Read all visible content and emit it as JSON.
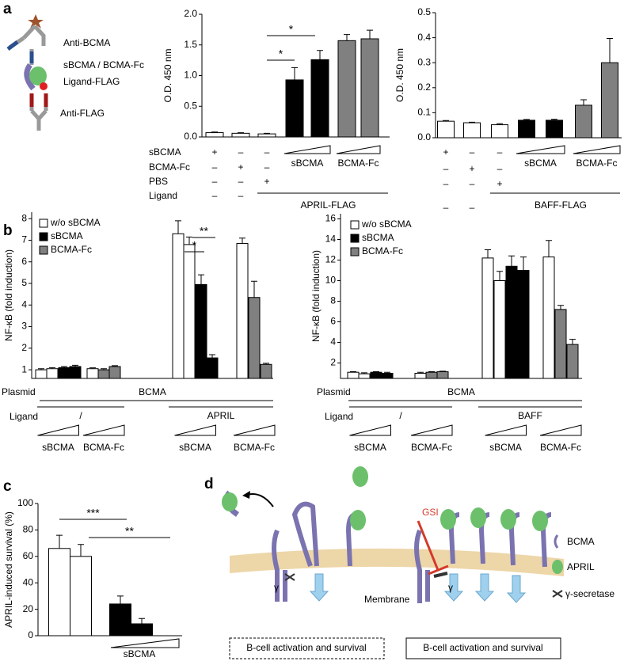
{
  "panel_labels": [
    "a",
    "b",
    "c",
    "d"
  ],
  "schematic": {
    "labels": [
      "Anti-BCMA",
      "sBCMA / BCMA-Fc",
      "Ligand-FLAG",
      "Anti-FLAG"
    ]
  },
  "diagram": {
    "inhibitor": "GSI",
    "legend": [
      "BCMA",
      "APRIL",
      "γ-secretase"
    ],
    "membrane": "Membrane",
    "gamma": [
      "γ",
      "γ"
    ],
    "outcomes": [
      "B-cell activation and survival",
      "B-cell activation and survival"
    ]
  },
  "chart_data": [
    {
      "type": "bar",
      "y_label": "O.D. 450 nm",
      "ylim": [
        0,
        2
      ],
      "yticks": [
        {
          "value": 0,
          "label": "0.0"
        },
        0.5,
        {
          "value": 1,
          "label": "1.0"
        },
        1.5,
        {
          "value": 2,
          "label": "2.0"
        }
      ],
      "values": [
        0.07,
        0.06,
        0.05,
        0.93,
        1.26,
        1.57,
        1.6
      ],
      "errors": [
        0.01,
        0.01,
        0.01,
        0.2,
        0.15,
        0.1,
        0.14
      ],
      "colors": [
        "#ffffff",
        "#ffffff",
        "#ffffff",
        "#000000",
        "#000000",
        "#808080",
        "#808080"
      ],
      "annotations": [
        "*",
        "*"
      ],
      "conditions": [
        {
          "name": "sBCMA",
          "marks": [
            "+",
            "–",
            "–"
          ]
        },
        {
          "name": "BCMA-Fc",
          "marks": [
            "–",
            "+",
            "–"
          ]
        },
        {
          "name": "PBS",
          "marks": [
            "–",
            "–",
            "+"
          ]
        },
        {
          "name": "Ligand",
          "marks": [
            "–",
            "–"
          ]
        }
      ],
      "groups": [
        "sBCMA",
        "BCMA-Fc"
      ],
      "ligand": "APRIL-FLAG"
    },
    {
      "type": "bar",
      "y_label": "O.D. 450 nm",
      "ylim": [
        0,
        0.5
      ],
      "yticks": [
        {
          "value": 0,
          "label": "0.0"
        },
        0.1,
        0.2,
        0.3,
        0.4,
        0.5
      ],
      "values": [
        0.066,
        0.06,
        0.052,
        0.07,
        0.07,
        0.13,
        0.3
      ],
      "errors": [
        0.003,
        0.002,
        0.004,
        0.003,
        0.004,
        0.022,
        0.097
      ],
      "colors": [
        "#ffffff",
        "#ffffff",
        "#ffffff",
        "#000000",
        "#000000",
        "#808080",
        "#808080"
      ],
      "conditions": [
        {
          "marks": [
            "+",
            "–",
            "–"
          ]
        },
        {
          "marks": [
            "–",
            "+",
            "–"
          ]
        },
        {
          "marks": [
            "–",
            "–",
            "+"
          ]
        },
        {
          "marks": [
            "–",
            "–"
          ]
        }
      ],
      "groups": [
        "sBCMA",
        "BCMA-Fc"
      ],
      "ligand": "BAFF-FLAG"
    },
    {
      "type": "bar",
      "y_label": "NF-κB (fold induction)",
      "legend": "upper left",
      "ylim": [
        0.6,
        8.3
      ],
      "yticks": [
        1,
        2,
        3,
        4,
        5,
        6,
        7,
        8
      ],
      "series": [
        {
          "name": "w/o sBCMA",
          "color": "#ffffff",
          "values": [
            1.0,
            1.05,
            null,
            null,
            1.05,
            null,
            null,
            7.3,
            6.8,
            null,
            null,
            6.85,
            null,
            null
          ],
          "errors": [
            0.05,
            0.05,
            null,
            null,
            0.04,
            null,
            null,
            0.6,
            0.35,
            null,
            null,
            0.25,
            null,
            null
          ]
        },
        {
          "name": "sBCMA",
          "color": "#000000",
          "values": [
            null,
            null,
            1.1,
            1.15,
            null,
            null,
            null,
            null,
            null,
            4.95,
            1.55,
            null,
            null,
            null
          ],
          "errors": [
            null,
            null,
            0.05,
            0.06,
            null,
            null,
            null,
            null,
            null,
            0.45,
            0.15,
            null,
            null,
            null
          ]
        },
        {
          "name": "BCMA-Fc",
          "color": "#808080",
          "values": [
            null,
            null,
            null,
            null,
            null,
            1.0,
            1.15,
            null,
            null,
            null,
            null,
            null,
            4.35,
            1.25
          ],
          "errors": [
            null,
            null,
            null,
            null,
            null,
            0.05,
            0.04,
            null,
            null,
            null,
            null,
            null,
            0.75,
            0.05
          ]
        }
      ],
      "annotations": [
        "*",
        "**"
      ],
      "plasmid_label": "Plasmid",
      "plasmid": "BCMA",
      "ligand_label": "Ligand",
      "ligands": [
        "/",
        "APRIL"
      ],
      "groups": [
        "sBCMA",
        "BCMA-Fc",
        "sBCMA",
        "BCMA-Fc"
      ]
    },
    {
      "type": "bar",
      "y_label": "NF-κB (fold induction)",
      "legend": "upper left",
      "ylim": [
        0.5,
        16.5
      ],
      "yticks": [
        2,
        4,
        6,
        8,
        10,
        12,
        14,
        16
      ],
      "series": [
        {
          "name": "w/o sBCMA",
          "color": "#ffffff",
          "values": [
            1.1,
            0.95,
            null,
            null,
            1.0,
            null,
            null,
            12.2,
            10.0,
            null,
            null,
            12.3,
            null,
            null
          ],
          "errors": [
            0.05,
            0.1,
            null,
            null,
            0.1,
            null,
            null,
            0.8,
            0.9,
            null,
            null,
            1.6,
            null,
            null
          ]
        },
        {
          "name": "sBCMA",
          "color": "#000000",
          "values": [
            null,
            null,
            1.1,
            1.0,
            null,
            null,
            null,
            null,
            null,
            11.4,
            11.0,
            null,
            null,
            null
          ],
          "errors": [
            null,
            null,
            0.05,
            0.1,
            null,
            null,
            null,
            null,
            null,
            1.0,
            1.3,
            null,
            null,
            null
          ]
        },
        {
          "name": "BCMA-Fc",
          "color": "#808080",
          "values": [
            null,
            null,
            null,
            null,
            null,
            1.1,
            1.15,
            null,
            null,
            null,
            null,
            null,
            7.2,
            3.8
          ],
          "errors": [
            null,
            null,
            null,
            null,
            null,
            0.05,
            0.05,
            null,
            null,
            null,
            null,
            null,
            0.4,
            0.5
          ]
        }
      ],
      "plasmid_label": "Plasmid",
      "plasmid": "BCMA",
      "ligand_label": "Ligand",
      "ligands": [
        "/",
        "BAFF"
      ],
      "groups": [
        "sBCMA",
        "BCMA-Fc",
        "sBCMA",
        "BCMA-Fc"
      ]
    },
    {
      "type": "bar",
      "y_label": "APRIL-induced survival (%)",
      "ylim": [
        0,
        100
      ],
      "yticks": [
        0,
        20,
        40,
        60,
        80,
        100
      ],
      "values": [
        66,
        60,
        24,
        9
      ],
      "errors": [
        10,
        9,
        6,
        4
      ],
      "colors": [
        "#ffffff",
        "#ffffff",
        "#000000",
        "#000000"
      ],
      "annotations": [
        "***",
        "**"
      ],
      "x_label": "sBCMA"
    }
  ]
}
